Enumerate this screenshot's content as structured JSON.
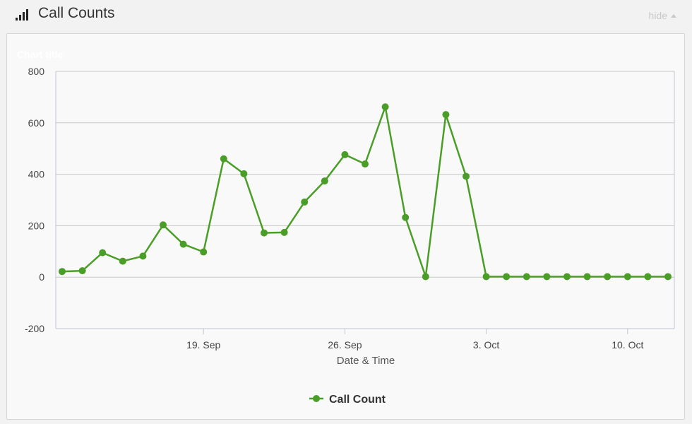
{
  "header": {
    "title": "Call Counts",
    "hide_label": "hide",
    "icon": "signal-bars-icon"
  },
  "colors": {
    "series": "#4a9e27",
    "grid": "#c8c8c8",
    "plot_border": "#c0c8d2"
  },
  "chart_data": {
    "type": "line",
    "title": "Chart title",
    "xlabel": "Date & Time",
    "ylabel": "",
    "ylim": [
      -200,
      800
    ],
    "yticks": [
      -200,
      0,
      200,
      400,
      600,
      800
    ],
    "x_ticks": [
      "19. Sep",
      "26. Sep",
      "3. Oct",
      "10. Oct"
    ],
    "x_start": "12. Sep",
    "grid": true,
    "legend": "bottom-center",
    "series": [
      {
        "name": "Call Count",
        "x": [
          "12. Sep",
          "13. Sep",
          "14. Sep",
          "15. Sep",
          "16. Sep",
          "17. Sep",
          "18. Sep",
          "19. Sep",
          "20. Sep",
          "21. Sep",
          "22. Sep",
          "23. Sep",
          "24. Sep",
          "25. Sep",
          "26. Sep",
          "27. Sep",
          "28. Sep",
          "29. Sep",
          "30. Sep",
          "1. Oct",
          "2. Oct",
          "3. Oct",
          "4. Oct",
          "5. Oct",
          "6. Oct",
          "7. Oct",
          "8. Oct",
          "9. Oct",
          "10. Oct",
          "11. Oct",
          "12. Oct"
        ],
        "values": [
          22,
          25,
          95,
          62,
          82,
          203,
          128,
          98,
          460,
          402,
          172,
          174,
          292,
          374,
          476,
          440,
          662,
          232,
          2,
          632,
          392,
          2,
          2,
          2,
          2,
          2,
          2,
          2,
          2,
          2,
          2
        ]
      }
    ]
  }
}
